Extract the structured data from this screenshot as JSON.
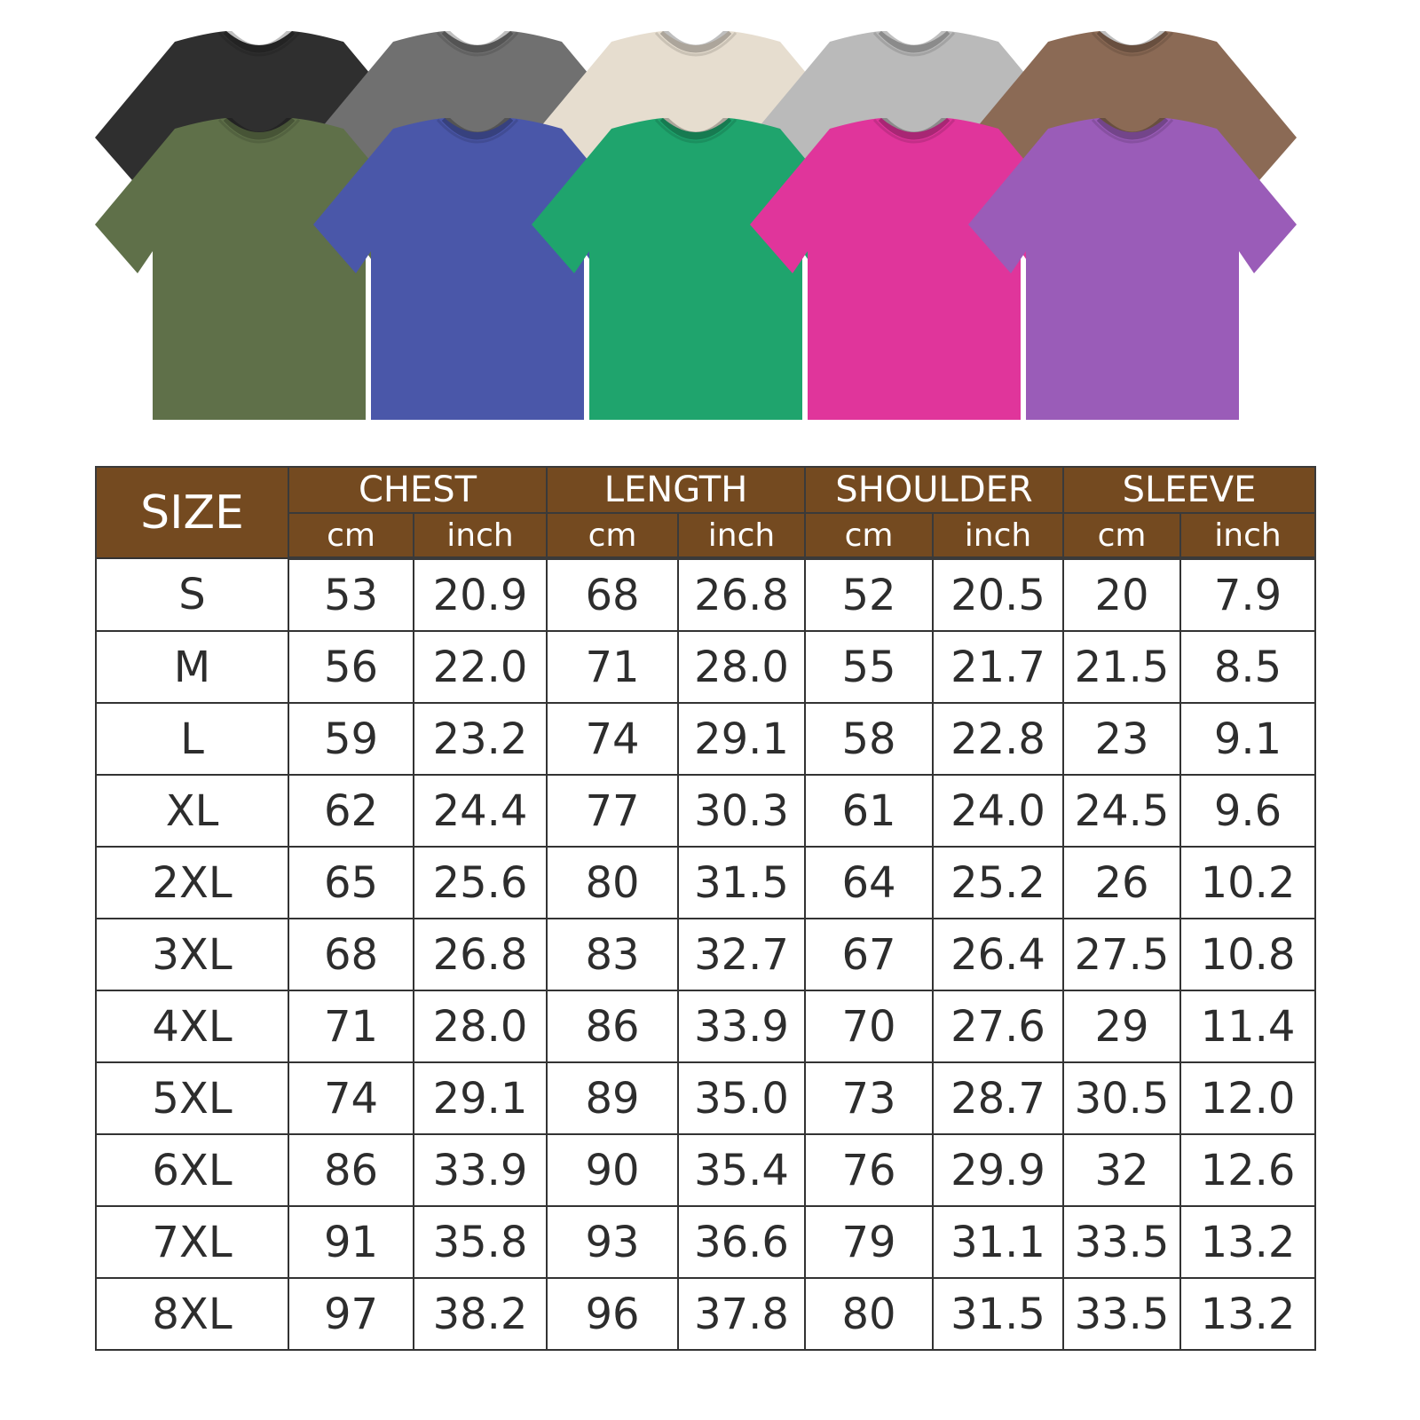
{
  "shirts": {
    "back_row": [
      {
        "color_name": "black",
        "color": "#2f2f2f"
      },
      {
        "color_name": "gray",
        "color": "#707070"
      },
      {
        "color_name": "cream",
        "color": "#e6ddcf"
      },
      {
        "color_name": "light-gray",
        "color": "#bababa"
      },
      {
        "color_name": "brown",
        "color": "#8b6a55"
      }
    ],
    "front_row": [
      {
        "color_name": "olive",
        "color": "#5f7049"
      },
      {
        "color_name": "blue",
        "color": "#4a57a9"
      },
      {
        "color_name": "green",
        "color": "#1fa46d"
      },
      {
        "color_name": "pink",
        "color": "#e0359b"
      },
      {
        "color_name": "purple",
        "color": "#9a5cb8"
      }
    ]
  },
  "table": {
    "header_color": "#744a20",
    "size_label": "SIZE",
    "groups": [
      {
        "label": "CHEST",
        "units": [
          "cm",
          "inch"
        ]
      },
      {
        "label": "LENGTH",
        "units": [
          "cm",
          "inch"
        ]
      },
      {
        "label": "SHOULDER",
        "units": [
          "cm",
          "inch"
        ]
      },
      {
        "label": "SLEEVE",
        "units": [
          "cm",
          "inch"
        ]
      }
    ],
    "rows": [
      {
        "size": "S",
        "values": [
          "53",
          "20.9",
          "68",
          "26.8",
          "52",
          "20.5",
          "20",
          "7.9"
        ]
      },
      {
        "size": "M",
        "values": [
          "56",
          "22.0",
          "71",
          "28.0",
          "55",
          "21.7",
          "21.5",
          "8.5"
        ]
      },
      {
        "size": "L",
        "values": [
          "59",
          "23.2",
          "74",
          "29.1",
          "58",
          "22.8",
          "23",
          "9.1"
        ]
      },
      {
        "size": "XL",
        "values": [
          "62",
          "24.4",
          "77",
          "30.3",
          "61",
          "24.0",
          "24.5",
          "9.6"
        ]
      },
      {
        "size": "2XL",
        "values": [
          "65",
          "25.6",
          "80",
          "31.5",
          "64",
          "25.2",
          "26",
          "10.2"
        ]
      },
      {
        "size": "3XL",
        "values": [
          "68",
          "26.8",
          "83",
          "32.7",
          "67",
          "26.4",
          "27.5",
          "10.8"
        ]
      },
      {
        "size": "4XL",
        "values": [
          "71",
          "28.0",
          "86",
          "33.9",
          "70",
          "27.6",
          "29",
          "11.4"
        ]
      },
      {
        "size": "5XL",
        "values": [
          "74",
          "29.1",
          "89",
          "35.0",
          "73",
          "28.7",
          "30.5",
          "12.0"
        ]
      },
      {
        "size": "6XL",
        "values": [
          "86",
          "33.9",
          "90",
          "35.4",
          "76",
          "29.9",
          "32",
          "12.6"
        ]
      },
      {
        "size": "7XL",
        "values": [
          "91",
          "35.8",
          "93",
          "36.6",
          "79",
          "31.1",
          "33.5",
          "13.2"
        ]
      },
      {
        "size": "8XL",
        "values": [
          "97",
          "38.2",
          "96",
          "37.8",
          "80",
          "31.5",
          "33.5",
          "13.2"
        ]
      }
    ]
  }
}
